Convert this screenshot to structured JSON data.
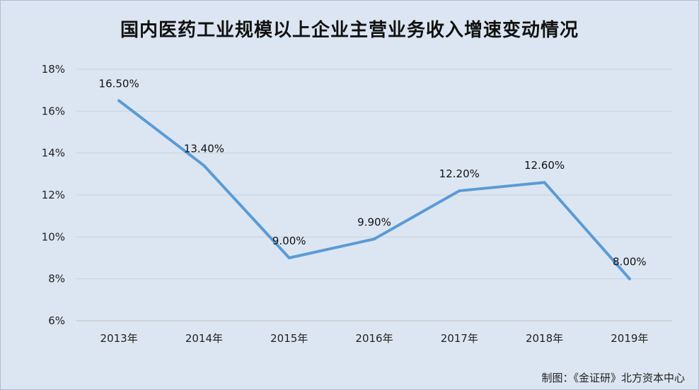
{
  "chart_data": {
    "type": "line",
    "title": "国内医药工业规模以上企业主营业务收入增速变动情况",
    "categories": [
      "2013年",
      "2014年",
      "2015年",
      "2016年",
      "2017年",
      "2018年",
      "2019年"
    ],
    "series": [
      {
        "values": [
          16.5,
          13.4,
          9.0,
          9.9,
          12.2,
          12.6,
          8.0
        ],
        "data_labels": [
          "16.50%",
          "13.40%",
          "9.00%",
          "9.90%",
          "12.20%",
          "12.60%",
          "8.00%"
        ],
        "color": "#5b9bd5"
      }
    ],
    "y_ticks": [
      "6%",
      "8%",
      "10%",
      "12%",
      "14%",
      "16%",
      "18%"
    ],
    "ylim": [
      6,
      18
    ],
    "grid": true,
    "legend": "none"
  },
  "footer": {
    "credit": "制图：《金证研》北方资本中心"
  }
}
